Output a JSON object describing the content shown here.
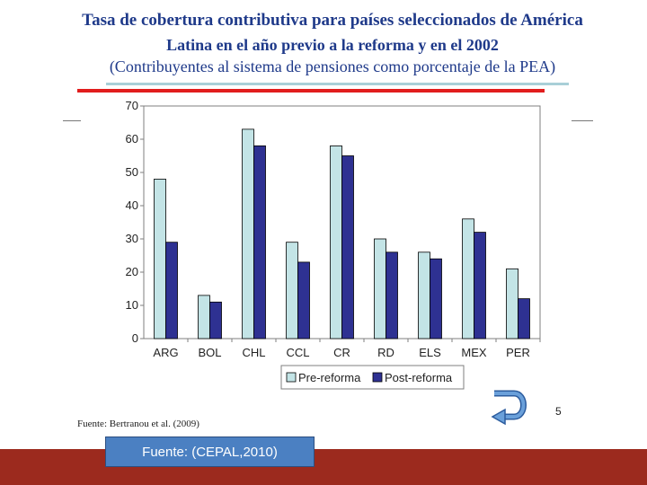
{
  "slide": {
    "title_line1": "Tasa de cobertura contributiva  para países seleccionados de América",
    "title_line2": "Latina en el año previo a la reforma y en el 2002",
    "title_line3": "(Contribuyentes  al sistema de pensiones  como porcentaje  de la PEA)",
    "source_small": "Fuente: Bertranou et al. (2009)",
    "page_number": "5",
    "source_box": "Fuente: (CEPAL,2010)"
  },
  "chart_data": {
    "type": "bar",
    "categories": [
      "ARG",
      "BOL",
      "CHL",
      "CCL",
      "CR",
      "RD",
      "ELS",
      "MEX",
      "PER"
    ],
    "series": [
      {
        "name": "Pre-reforma",
        "values": [
          48,
          13,
          63,
          29,
          58,
          30,
          26,
          36,
          21
        ],
        "color": "#c3e4e6"
      },
      {
        "name": "Post-reforma",
        "values": [
          29,
          11,
          58,
          23,
          55,
          26,
          24,
          32,
          12
        ],
        "color": "#2e3192"
      }
    ],
    "yticks": [
      "0",
      "10",
      "20",
      "30",
      "40",
      "50",
      "60",
      "70"
    ],
    "ylim": [
      0,
      70
    ],
    "grid": false,
    "legend_position": "bottom"
  }
}
